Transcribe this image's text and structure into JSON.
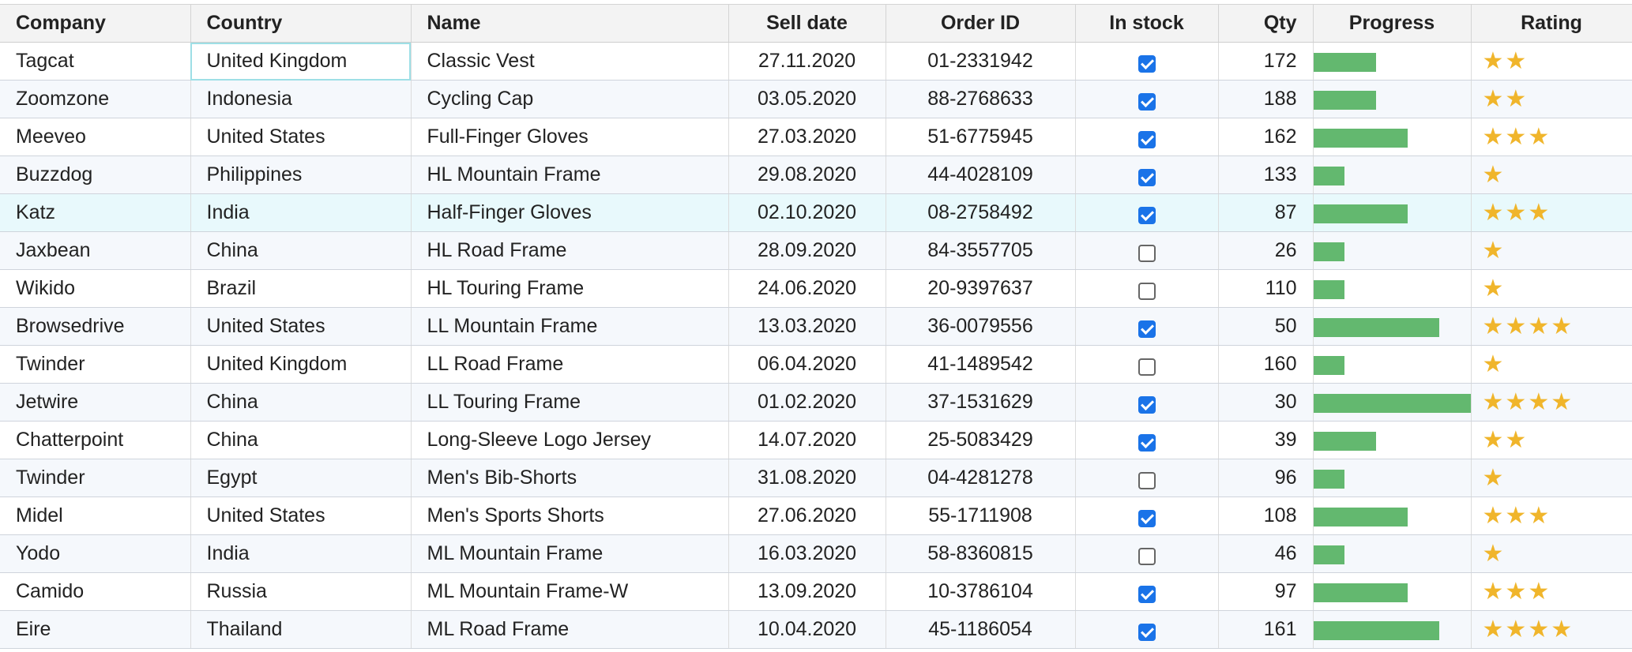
{
  "headers": [
    "Company",
    "Country",
    "Name",
    "Sell date",
    "Order ID",
    "In stock",
    "Qty",
    "Progress",
    "Rating"
  ],
  "rows": [
    {
      "company": "Tagcat",
      "country": "United Kingdom",
      "name": "Classic Vest",
      "sell_date": "27.11.2020",
      "order_id": "01-2331942",
      "in_stock": true,
      "qty": "172",
      "progress": 40,
      "rating": 2
    },
    {
      "company": "Zoomzone",
      "country": "Indonesia",
      "name": "Cycling Cap",
      "sell_date": "03.05.2020",
      "order_id": "88-2768633",
      "in_stock": true,
      "qty": "188",
      "progress": 40,
      "rating": 2
    },
    {
      "company": "Meeveo",
      "country": "United States",
      "name": "Full-Finger Gloves",
      "sell_date": "27.03.2020",
      "order_id": "51-6775945",
      "in_stock": true,
      "qty": "162",
      "progress": 60,
      "rating": 3
    },
    {
      "company": "Buzzdog",
      "country": "Philippines",
      "name": "HL Mountain Frame",
      "sell_date": "29.08.2020",
      "order_id": "44-4028109",
      "in_stock": true,
      "qty": "133",
      "progress": 20,
      "rating": 1
    },
    {
      "company": "Katz",
      "country": "India",
      "name": "Half-Finger Gloves",
      "sell_date": "02.10.2020",
      "order_id": "08-2758492",
      "in_stock": true,
      "qty": "87",
      "progress": 60,
      "rating": 3
    },
    {
      "company": "Jaxbean",
      "country": "China",
      "name": "HL Road Frame",
      "sell_date": "28.09.2020",
      "order_id": "84-3557705",
      "in_stock": false,
      "qty": "26",
      "progress": 20,
      "rating": 1
    },
    {
      "company": "Wikido",
      "country": "Brazil",
      "name": "HL Touring Frame",
      "sell_date": "24.06.2020",
      "order_id": "20-9397637",
      "in_stock": false,
      "qty": "110",
      "progress": 20,
      "rating": 1
    },
    {
      "company": "Browsedrive",
      "country": "United States",
      "name": "LL Mountain Frame",
      "sell_date": "13.03.2020",
      "order_id": "36-0079556",
      "in_stock": true,
      "qty": "50",
      "progress": 80,
      "rating": 4
    },
    {
      "company": "Twinder",
      "country": "United Kingdom",
      "name": "LL Road Frame",
      "sell_date": "06.04.2020",
      "order_id": "41-1489542",
      "in_stock": false,
      "qty": "160",
      "progress": 20,
      "rating": 1
    },
    {
      "company": "Jetwire",
      "country": "China",
      "name": "LL Touring Frame",
      "sell_date": "01.02.2020",
      "order_id": "37-1531629",
      "in_stock": true,
      "qty": "30",
      "progress": 100,
      "rating": 4
    },
    {
      "company": "Chatterpoint",
      "country": "China",
      "name": "Long-Sleeve Logo Jersey",
      "sell_date": "14.07.2020",
      "order_id": "25-5083429",
      "in_stock": true,
      "qty": "39",
      "progress": 40,
      "rating": 2
    },
    {
      "company": "Twinder",
      "country": "Egypt",
      "name": "Men's Bib-Shorts",
      "sell_date": "31.08.2020",
      "order_id": "04-4281278",
      "in_stock": false,
      "qty": "96",
      "progress": 20,
      "rating": 1
    },
    {
      "company": "Midel",
      "country": "United States",
      "name": "Men's Sports Shorts",
      "sell_date": "27.06.2020",
      "order_id": "55-1711908",
      "in_stock": true,
      "qty": "108",
      "progress": 60,
      "rating": 3
    },
    {
      "company": "Yodo",
      "country": "India",
      "name": "ML Mountain Frame",
      "sell_date": "16.03.2020",
      "order_id": "58-8360815",
      "in_stock": false,
      "qty": "46",
      "progress": 20,
      "rating": 1
    },
    {
      "company": "Camido",
      "country": "Russia",
      "name": "ML Mountain Frame-W",
      "sell_date": "13.09.2020",
      "order_id": "10-3786104",
      "in_stock": true,
      "qty": "97",
      "progress": 60,
      "rating": 3
    },
    {
      "company": "Eire",
      "country": "Thailand",
      "name": "ML Road Frame",
      "sell_date": "10.04.2020",
      "order_id": "45-1186054",
      "in_stock": true,
      "qty": "161",
      "progress": 80,
      "rating": 4
    }
  ],
  "selected_cell": {
    "row": 0,
    "column": "country"
  },
  "highlighted_row": 4,
  "colors": {
    "progress_bar": "#63b86f",
    "star": "#f0b52b",
    "checkbox": "#1a73e8",
    "highlight_row": "#e8f9fc",
    "selected_border": "#9edfe6"
  },
  "icons": {
    "rating": "star-icon",
    "in_stock": "checkbox-icon"
  }
}
